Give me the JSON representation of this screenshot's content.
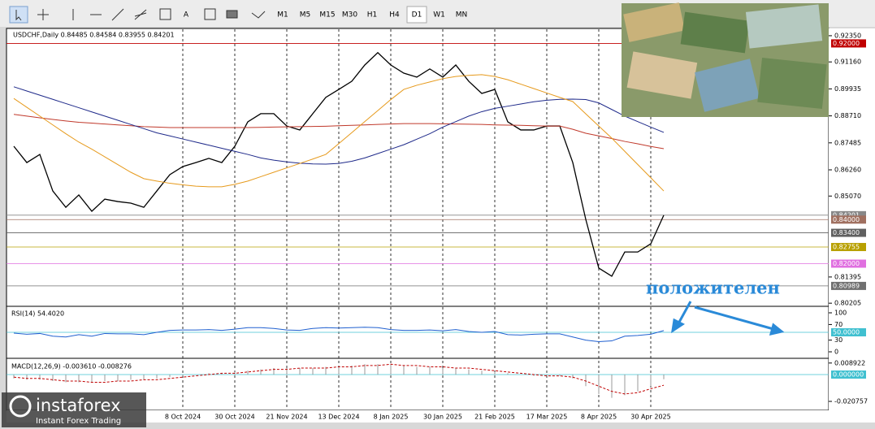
{
  "toolbar": {
    "text_tool": "A",
    "timeframes": [
      "M1",
      "M5",
      "M15",
      "M30",
      "H1",
      "H4",
      "D1",
      "W1",
      "MN"
    ],
    "active": "D1"
  },
  "annotation": "положителен",
  "watermark": {
    "brand": "instaforex",
    "tagline": "Instant Forex Trading"
  },
  "chart_data": [
    {
      "type": "line",
      "title": "USDCHF,Daily  0.84485 0.84584 0.83955 0.84201",
      "categories": [
        null,
        null,
        null,
        null,
        null,
        null,
        null,
        null,
        null,
        null,
        null,
        null,
        null,
        "8 Oct 2024",
        null,
        null,
        null,
        "30 Oct 2024",
        null,
        null,
        null,
        "21 Nov 2024",
        null,
        null,
        null,
        "13 Dec 2024",
        null,
        null,
        null,
        "8 Jan 2025",
        null,
        null,
        null,
        "30 Jan 2025",
        null,
        null,
        null,
        "21 Feb 2025",
        null,
        null,
        null,
        "17 Mar 2025",
        null,
        null,
        null,
        "8 Apr 2025",
        null,
        null,
        null,
        "30 Apr 2025",
        null
      ],
      "series": [
        {
          "color": "#000000",
          "values": [
            0.8733,
            0.8659,
            0.8696,
            0.853,
            0.8456,
            0.8512,
            0.8438,
            0.8493,
            0.8482,
            0.8475,
            0.8456,
            0.853,
            0.8604,
            0.8641,
            0.8659,
            0.8678,
            0.8659,
            0.8733,
            0.8844,
            0.8881,
            0.8881,
            0.8825,
            0.8807,
            0.8881,
            0.8955,
            0.8991,
            0.9028,
            0.9102,
            0.9158,
            0.9102,
            0.9065,
            0.9047,
            0.9084,
            0.9047,
            0.9102,
            0.9028,
            0.8973,
            0.8991,
            0.8844,
            0.8807,
            0.8807,
            0.8825,
            0.8825,
            0.8659,
            0.8401,
            0.818,
            0.8143,
            0.8253,
            0.8253,
            0.829,
            0.84201
          ]
        },
        {
          "color": "#c0392b",
          "values": [
            0.8878,
            0.887,
            0.8862,
            0.8855,
            0.8848,
            0.8842,
            0.8838,
            0.8834,
            0.883,
            0.8826,
            0.8822,
            0.882,
            0.8818,
            0.8818,
            0.8818,
            0.8818,
            0.8818,
            0.8818,
            0.8818,
            0.8819,
            0.882,
            0.8821,
            0.8822,
            0.8823,
            0.8824,
            0.8826,
            0.8828,
            0.883,
            0.8832,
            0.8834,
            0.8836,
            0.8836,
            0.8836,
            0.8835,
            0.8834,
            0.8833,
            0.8832,
            0.883,
            0.8829,
            0.8828,
            0.8826,
            0.8825,
            0.8825,
            0.881,
            0.8792,
            0.878,
            0.8768,
            0.8755,
            0.8744,
            0.8732,
            0.8722
          ]
        },
        {
          "color": "#1f2a8a",
          "values": [
            0.9003,
            0.8984,
            0.8965,
            0.8946,
            0.8927,
            0.8908,
            0.8889,
            0.887,
            0.8851,
            0.8832,
            0.8813,
            0.8794,
            0.878,
            0.8766,
            0.8752,
            0.8738,
            0.8724,
            0.871,
            0.8696,
            0.868,
            0.867,
            0.8662,
            0.8656,
            0.8653,
            0.8652,
            0.8655,
            0.8665,
            0.868,
            0.87,
            0.872,
            0.874,
            0.8765,
            0.879,
            0.882,
            0.8845,
            0.887,
            0.889,
            0.8905,
            0.8915,
            0.8925,
            0.8935,
            0.8942,
            0.8946,
            0.8947,
            0.8945,
            0.893,
            0.89,
            0.887,
            0.8845,
            0.882,
            0.8796
          ]
        },
        {
          "color": "#e69a1c",
          "values": [
            0.895,
            0.891,
            0.887,
            0.883,
            0.879,
            0.8752,
            0.872,
            0.8685,
            0.865,
            0.8615,
            0.8586,
            0.8575,
            0.8565,
            0.8558,
            0.8552,
            0.8549,
            0.8549,
            0.856,
            0.8575,
            0.8595,
            0.8615,
            0.8635,
            0.8655,
            0.8675,
            0.8696,
            0.8745,
            0.8795,
            0.8845,
            0.8895,
            0.8945,
            0.8991,
            0.901,
            0.9025,
            0.904,
            0.905,
            0.9055,
            0.9058,
            0.905,
            0.9035,
            0.9015,
            0.8995,
            0.8975,
            0.8955,
            0.8936,
            0.888,
            0.8825,
            0.877,
            0.871,
            0.865,
            0.859,
            0.853
          ]
        }
      ],
      "ylim": [
        0.801,
        0.9268
      ],
      "yticks": [
        {
          "value": 0.9235,
          "label": "0.92350"
        },
        {
          "value": 0.9116,
          "label": "0.91160"
        },
        0.89935,
        {
          "value": 0.8871,
          "label": "0.88710"
        },
        0.87485,
        {
          "value": 0.8626,
          "label": "0.86260"
        },
        {
          "value": 0.8507,
          "label": "0.85070"
        },
        0.81395,
        0.80205
      ],
      "levels": [
        {
          "value": 0.92,
          "label": "0.92000",
          "color": "#c00000"
        },
        {
          "value": 0.84201,
          "label": "0.84201",
          "color": "#888888"
        },
        {
          "value": 0.84,
          "label": "0.84000",
          "color": "#a07060"
        },
        {
          "value": 0.834,
          "label": "0.83400",
          "color": "#606060"
        },
        {
          "value": 0.82755,
          "label": "0.82755",
          "color": "#b8a000"
        },
        {
          "value": 0.82,
          "label": "0.82000",
          "color": "#e070e0"
        },
        {
          "value": 0.80989,
          "label": "0.80989",
          "color": "#707070"
        }
      ]
    },
    {
      "type": "line",
      "title": "RSI(14) 54.4020",
      "ylim": [
        -14.6,
        114.6
      ],
      "yticks": [
        0,
        30,
        70,
        100
      ],
      "levels": [
        {
          "value": 50,
          "label": "50.0000",
          "color": "#40c0d0"
        }
      ],
      "series": [
        {
          "color": "#2060d0",
          "values": [
            48,
            45,
            47,
            40,
            38,
            44,
            40,
            47,
            46,
            46,
            44,
            50,
            55,
            56,
            56,
            57,
            55,
            58,
            62,
            62,
            60,
            56,
            55,
            60,
            62,
            61,
            62,
            63,
            62,
            57,
            55,
            55,
            56,
            54,
            57,
            52,
            50,
            52,
            44,
            43,
            45,
            46,
            46,
            38,
            30,
            26,
            28,
            40,
            42,
            45,
            54.402
          ]
        }
      ]
    },
    {
      "type": "bar",
      "title": "MACD(12,26,9) -0.003610 -0.008276",
      "ylim": [
        -0.02768,
        0.01195
      ],
      "yticks": [
        0.008922,
        -0.020757
      ],
      "levels": [
        {
          "value": 0,
          "label": "0.000000",
          "color": "#40c0d0"
        }
      ],
      "values": [
        -0.003,
        -0.004,
        -0.004,
        -0.005,
        -0.006,
        -0.006,
        -0.006,
        -0.005,
        -0.005,
        -0.004,
        -0.004,
        -0.003,
        -0.002,
        -0.001,
        0,
        0.001,
        0.001,
        0.002,
        0.003,
        0.004,
        0.005,
        0.005,
        0.005,
        0.005,
        0.006,
        0.006,
        0.007,
        0.008,
        0.008,
        0.008,
        0.007,
        0.006,
        0.006,
        0.005,
        0.005,
        0.004,
        0.003,
        0.002,
        0.001,
        0,
        -0.001,
        -0.001,
        -0.001,
        -0.003,
        -0.009,
        -0.015,
        -0.018,
        -0.016,
        -0.013,
        -0.009,
        -0.00361
      ],
      "color": "#999999",
      "series": [
        {
          "color": "#c00000",
          "dash": true,
          "values": [
            -0.002,
            -0.003,
            -0.003,
            -0.004,
            -0.005,
            -0.005,
            -0.006,
            -0.006,
            -0.005,
            -0.005,
            -0.004,
            -0.004,
            -0.003,
            -0.002,
            -0.001,
            0,
            0.001,
            0.001,
            0.002,
            0.003,
            0.004,
            0.004,
            0.005,
            0.005,
            0.005,
            0.006,
            0.006,
            0.007,
            0.007,
            0.008,
            0.007,
            0.007,
            0.006,
            0.006,
            0.005,
            0.005,
            0.004,
            0.003,
            0.002,
            0.001,
            0,
            -0.001,
            -0.001,
            -0.002,
            -0.005,
            -0.009,
            -0.013,
            -0.015,
            -0.014,
            -0.011,
            -0.008276
          ]
        }
      ]
    }
  ]
}
